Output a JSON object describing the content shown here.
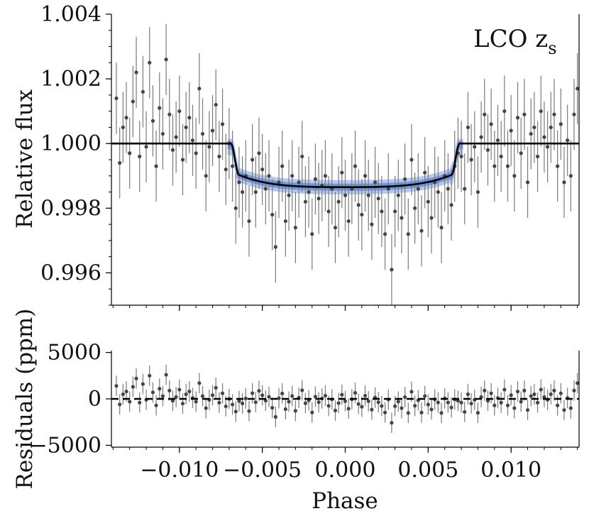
{
  "chart_data": [
    {
      "type": "scatter",
      "panel": "top",
      "ylabel": "Relative flux",
      "xlim": [
        -0.0141,
        0.0141
      ],
      "ylim": [
        0.995,
        1.004
      ],
      "yticks": [
        0.996,
        0.998,
        1.0,
        1.002,
        1.004
      ],
      "ytick_labels": [
        "0.996",
        "0.998",
        "1.000",
        "1.002",
        "1.004"
      ],
      "annotation": {
        "main": "LCO z",
        "sub": "s"
      },
      "model": {
        "out_of_transit": 1.0,
        "depth_min": 0.99865,
        "ingress": [
          -0.0069,
          -0.0064
        ],
        "egress": [
          0.0064,
          0.0069
        ]
      },
      "series": [
        {
          "kind": "data",
          "x": [
            -0.0138,
            -0.0136,
            -0.0134,
            -0.0132,
            -0.013,
            -0.0128,
            -0.0126,
            -0.0124,
            -0.0122,
            -0.012,
            -0.0118,
            -0.0116,
            -0.0114,
            -0.0112,
            -0.011,
            -0.0108,
            -0.0106,
            -0.0104,
            -0.0102,
            -0.01,
            -0.0098,
            -0.0096,
            -0.0094,
            -0.0092,
            -0.009,
            -0.0088,
            -0.0086,
            -0.0084,
            -0.0082,
            -0.008,
            -0.0078,
            -0.0076,
            -0.0074,
            -0.0072,
            -0.007,
            -0.0068,
            -0.0066,
            -0.0064,
            -0.0062,
            -0.006,
            -0.0058,
            -0.0056,
            -0.0054,
            -0.0052,
            -0.005,
            -0.0048,
            -0.0046,
            -0.0044,
            -0.0042,
            -0.004,
            -0.0038,
            -0.0036,
            -0.0034,
            -0.0032,
            -0.003,
            -0.0028,
            -0.0026,
            -0.0024,
            -0.0022,
            -0.002,
            -0.0018,
            -0.0016,
            -0.0014,
            -0.0012,
            -0.001,
            -0.0008,
            -0.0006,
            -0.0004,
            -0.0002,
            0.0,
            0.0002,
            0.0004,
            0.0006,
            0.0008,
            0.001,
            0.0012,
            0.0014,
            0.0016,
            0.0018,
            0.002,
            0.0022,
            0.0024,
            0.0026,
            0.0028,
            0.003,
            0.0032,
            0.0034,
            0.0036,
            0.0038,
            0.004,
            0.0042,
            0.0044,
            0.0046,
            0.0048,
            0.005,
            0.0052,
            0.0054,
            0.0056,
            0.0058,
            0.006,
            0.0062,
            0.0064,
            0.0066,
            0.0068,
            0.007,
            0.0072,
            0.0074,
            0.0076,
            0.0078,
            0.008,
            0.0082,
            0.0084,
            0.0086,
            0.0088,
            0.009,
            0.0092,
            0.0094,
            0.0096,
            0.0098,
            0.01,
            0.0102,
            0.0104,
            0.0106,
            0.0108,
            0.011,
            0.0112,
            0.0114,
            0.0116,
            0.0118,
            0.012,
            0.0122,
            0.0124,
            0.0126,
            0.0128,
            0.013,
            0.0132,
            0.0134,
            0.0136,
            0.0138,
            0.014
          ],
          "y": [
            1.0014,
            0.9994,
            1.0005,
            1.0008,
            0.9997,
            1.0013,
            1.0022,
            0.9996,
            1.0016,
            0.9999,
            1.0025,
            1.0007,
            0.9993,
            1.0011,
            1.0003,
            1.0026,
            1.0009,
            0.9998,
            1.0002,
            1.001,
            0.9995,
            1.0005,
            1.0008,
            1.0001,
            0.9997,
            1.0017,
            1.0003,
            0.999,
            0.9999,
            1.0004,
            1.0012,
            0.9996,
            1.0006,
            0.9992,
            1.0,
            0.9993,
            0.998,
            0.9988,
            0.9985,
            0.999,
            0.9976,
            0.9995,
            0.9985,
            0.9997,
            0.9992,
            0.9986,
            0.999,
            0.9978,
            0.9968,
            0.9988,
            0.9993,
            0.9976,
            0.9984,
            0.999,
            0.9974,
            0.9988,
            0.9996,
            0.9982,
            0.9985,
            0.9972,
            0.9989,
            0.9983,
            0.9987,
            0.999,
            0.9979,
            0.9986,
            0.9974,
            0.9982,
            0.9991,
            0.9984,
            0.9976,
            0.9986,
            0.9993,
            0.9981,
            0.9978,
            0.999,
            0.9984,
            0.9975,
            0.9988,
            0.9983,
            0.9979,
            0.9972,
            0.9986,
            0.9961,
            0.9979,
            0.9984,
            0.9977,
            0.9989,
            0.9972,
            0.9995,
            0.998,
            0.9986,
            0.9973,
            0.9991,
            0.9982,
            0.9977,
            0.9988,
            0.9985,
            0.9974,
            0.999,
            0.9986,
            0.9981,
            0.9993,
            0.9997,
            0.9996,
            0.9986,
            1.0005,
            0.9995,
            0.9999,
            0.9985,
            1.0002,
            1.0009,
            0.9998,
            1.0006,
            0.9993,
            1.0001,
            0.9996,
            1.001,
            0.9993,
            1.0004,
            0.999,
            1.0008,
            0.9997,
            1.0009,
            0.9988,
            1.0003,
            1.0005,
            0.9996,
            1.001,
            1.0002,
            0.9999,
            1.0005,
            1.0009,
            0.9993,
            1.0006,
            0.9988,
            1.0001,
            0.999,
            1.0009,
            1.0017
          ],
          "yerr": 0.0011
        }
      ]
    },
    {
      "type": "scatter",
      "panel": "bottom",
      "xlabel": "Phase",
      "ylabel": "Residuals (ppm)",
      "xlim": [
        -0.0141,
        0.0141
      ],
      "ylim": [
        -5200,
        5200
      ],
      "yticks": [
        -5000,
        0,
        5000
      ],
      "ytick_labels": [
        "−5000",
        "0",
        "5000"
      ],
      "xticks": [
        -0.01,
        -0.005,
        0.0,
        0.005,
        0.01
      ],
      "xtick_labels": [
        "−0.010",
        "−0.005",
        "0.000",
        "0.005",
        "0.010"
      ],
      "zero_line": "dashed"
    }
  ]
}
